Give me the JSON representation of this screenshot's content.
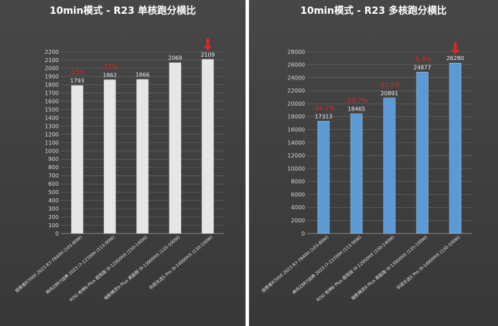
{
  "chart_data": [
    {
      "type": "bar",
      "title": "10min模式 - R23 单核跑分横比",
      "categories": [
        "拯救者R7000 2023 R7-7840H (103-80W)",
        "神舟Z8R7战神 2023 i7-13700H (113-90W)",
        "ROG 枪神6 Plus 超竞版 i9-12950HX (150-140W)",
        "暗影精灵9 Plus 高能版 i9-13900HX (135-100W)",
        "华硕天选5 Pro i9-14900HX (130-100W)"
      ],
      "values": [
        1793,
        1862,
        1866,
        2069,
        2109
      ],
      "value_labels": [
        "1793",
        "1862",
        "1866",
        "2069",
        "2109"
      ],
      "annotations": [
        "-15%",
        "-12%",
        "",
        "",
        ""
      ],
      "ylim": [
        0,
        2200
      ],
      "yticks": [
        "0",
        "100",
        "200",
        "300",
        "400",
        "500",
        "600",
        "700",
        "800",
        "900",
        "1000",
        "1100",
        "1200",
        "1300",
        "1400",
        "1500",
        "1600",
        "1700",
        "1800",
        "1900",
        "2000",
        "2100",
        "2200"
      ],
      "bar_color": "#e6e6e6",
      "grid": true
    },
    {
      "type": "bar",
      "title": "10min模式 - R23 多核跑分横比",
      "categories": [
        "拯救者R7000 2023 R7-7840H (103-80W)",
        "神舟Z8R7战神 2023 i7-13700H (113-90W)",
        "ROG 枪神6 Plus 超竞版 i9-12950HX (150-140W)",
        "暗影精灵9 Plus 高能版 i9-13900HX (135-100W)",
        "华硕天选5 Pro i9-14900HX (130-100W)"
      ],
      "values": [
        17313,
        18465,
        20891,
        24877,
        26280
      ],
      "value_labels": [
        "17313",
        "18465",
        "20891",
        "24877",
        "26280"
      ],
      "annotations": [
        "-34.1%",
        "-29.7%",
        "-20.5%",
        "-5.3%",
        ""
      ],
      "ylim": [
        0,
        28000
      ],
      "yticks": [
        "0",
        "2000",
        "4000",
        "6000",
        "8000",
        "10000",
        "12000",
        "14000",
        "16000",
        "18000",
        "20000",
        "22000",
        "24000",
        "26000",
        "28000"
      ],
      "bar_color": "#5b9bd5",
      "grid": true
    }
  ],
  "marker_color": "#e8242a"
}
